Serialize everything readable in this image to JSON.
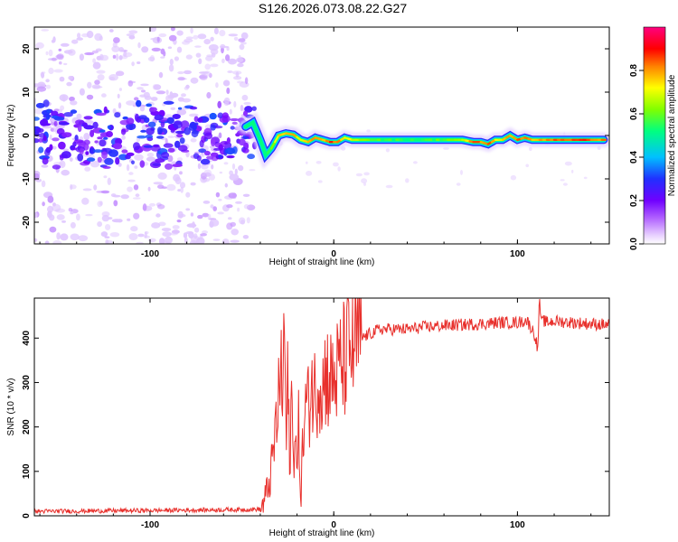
{
  "title": "S126.2026.073.08.22.G27",
  "chart_data": [
    {
      "type": "heatmap",
      "title": "S126.2026.073.08.22.G27",
      "xlabel": "Height of straight line (km)",
      "ylabel": "Frequency (Hz)",
      "xlim": [
        -163,
        150
      ],
      "ylim": [
        -25,
        25
      ],
      "xticks": [
        -100,
        0,
        100
      ],
      "yticks": [
        -20,
        -10,
        0,
        10,
        20
      ],
      "colorbar": {
        "label": "Normalized spectral amplitude",
        "range": [
          0,
          1
        ],
        "ticks": [
          0.0,
          0.2,
          0.4,
          0.6,
          0.8
        ],
        "colors": [
          "#ffffff",
          "#d9b3ff",
          "#8000ff",
          "#2020ff",
          "#00c0ff",
          "#00ff80",
          "#80ff00",
          "#ffff00",
          "#ff8000",
          "#ff0000",
          "#ff0080"
        ]
      },
      "ridge": {
        "x": [
          -48,
          -44,
          -40,
          -37,
          -34,
          -30,
          -26,
          -22,
          -18,
          -14,
          -10,
          -6,
          -2,
          2,
          6,
          10,
          15,
          20,
          30,
          40,
          50,
          60,
          70,
          76,
          80,
          84,
          88,
          92,
          96,
          100,
          104,
          108,
          112,
          120,
          130,
          140,
          147
        ],
        "freq": [
          2,
          3,
          -1,
          -4.5,
          -3,
          0,
          0.5,
          0.2,
          -1,
          -1.5,
          -0.5,
          -1,
          -1.5,
          -1.5,
          -0.5,
          -1,
          -1,
          -1,
          -1,
          -1,
          -1,
          -1,
          -1,
          -1.5,
          -1.5,
          -2,
          -1,
          -1,
          0,
          -1,
          -0.5,
          -1,
          -1,
          -1,
          -1,
          -1,
          -1
        ],
        "amplitude": [
          0.4,
          0.45,
          0.5,
          0.55,
          0.6,
          0.75,
          0.8,
          0.75,
          0.7,
          0.75,
          0.8,
          0.75,
          0.85,
          0.8,
          0.7,
          0.7,
          0.65,
          0.6,
          0.55,
          0.55,
          0.55,
          0.6,
          0.65,
          0.85,
          0.8,
          0.85,
          0.7,
          0.75,
          0.8,
          0.85,
          0.8,
          0.75,
          0.8,
          0.85,
          0.85,
          0.85,
          0.8
        ]
      }
    },
    {
      "type": "line",
      "xlabel": "Height of straight line (km)",
      "ylabel": "SNR (10 * v/v)",
      "xlim": [
        -163,
        150
      ],
      "ylim": [
        0,
        490
      ],
      "xticks": [
        -100,
        0,
        100
      ],
      "yticks": [
        0,
        100,
        200,
        300,
        400
      ],
      "color": "#e8302c",
      "series": [
        {
          "name": "SNR",
          "x": [
            -163,
            -100,
            -50,
            -40,
            -38,
            -36,
            -34,
            -32,
            -30,
            -29,
            -28,
            -27,
            -26,
            -25,
            -24,
            -23,
            -22,
            -21,
            -20,
            -19,
            -18,
            -17,
            -16,
            -15,
            -14,
            -12,
            -10,
            -8,
            -6,
            -4,
            -2,
            0,
            2,
            4,
            6,
            8,
            10,
            12,
            15,
            20,
            25,
            30,
            40,
            50,
            60,
            70,
            80,
            90,
            100,
            105,
            108,
            110,
            111,
            112,
            113,
            114,
            116,
            120,
            130,
            140,
            150
          ],
          "y": [
            10,
            12,
            14,
            15,
            30,
            60,
            100,
            180,
            250,
            380,
            200,
            480,
            150,
            300,
            120,
            280,
            100,
            250,
            60,
            220,
            30,
            150,
            200,
            260,
            240,
            300,
            270,
            320,
            290,
            330,
            300,
            310,
            320,
            340,
            350,
            370,
            380,
            390,
            400,
            410,
            420,
            420,
            420,
            425,
            428,
            430,
            432,
            435,
            435,
            440,
            420,
            400,
            370,
            490,
            430,
            440,
            435,
            438,
            435,
            432,
            430
          ]
        }
      ]
    }
  ]
}
